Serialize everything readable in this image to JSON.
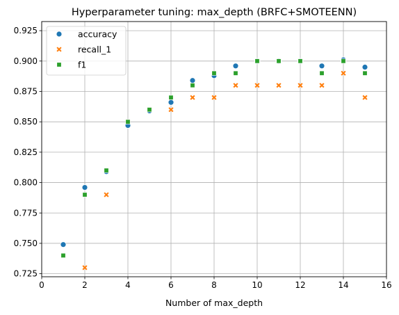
{
  "chart_data": {
    "type": "scatter",
    "title": "Hyperparameter tuning: max_depth (BRFC+SMOTEENN)",
    "xlabel": "Number of max_depth",
    "ylabel": "",
    "xlim": [
      0,
      16
    ],
    "ylim": [
      0.7225,
      0.9325
    ],
    "x_ticks": [
      0,
      2,
      4,
      6,
      8,
      10,
      12,
      14,
      16
    ],
    "y_ticks": [
      0.725,
      0.75,
      0.775,
      0.8,
      0.825,
      0.85,
      0.875,
      0.9,
      0.925
    ],
    "y_tick_labels": [
      "0.725",
      "0.750",
      "0.775",
      "0.800",
      "0.825",
      "0.850",
      "0.875",
      "0.900",
      "0.925"
    ],
    "grid": true,
    "legend_position": "top-left",
    "x": [
      1,
      2,
      3,
      4,
      5,
      6,
      7,
      8,
      9,
      10,
      11,
      12,
      13,
      14,
      15
    ],
    "series": [
      {
        "name": "accuracy",
        "marker": "circle",
        "color": "#1f77b4",
        "values": [
          0.749,
          0.796,
          0.809,
          0.847,
          0.859,
          0.866,
          0.884,
          0.888,
          0.896,
          0.9,
          0.9,
          0.9,
          0.896,
          0.901,
          0.895
        ]
      },
      {
        "name": "recall_1",
        "marker": "x",
        "color": "#ff7f0e",
        "values": [
          0.74,
          0.73,
          0.79,
          0.85,
          0.86,
          0.86,
          0.87,
          0.87,
          0.88,
          0.88,
          0.88,
          0.88,
          0.88,
          0.89,
          0.87
        ]
      },
      {
        "name": "f1",
        "marker": "square",
        "color": "#2ca02c",
        "values": [
          0.74,
          0.79,
          0.81,
          0.85,
          0.86,
          0.87,
          0.88,
          0.89,
          0.89,
          0.9,
          0.9,
          0.9,
          0.89,
          0.9,
          0.89
        ]
      }
    ]
  }
}
